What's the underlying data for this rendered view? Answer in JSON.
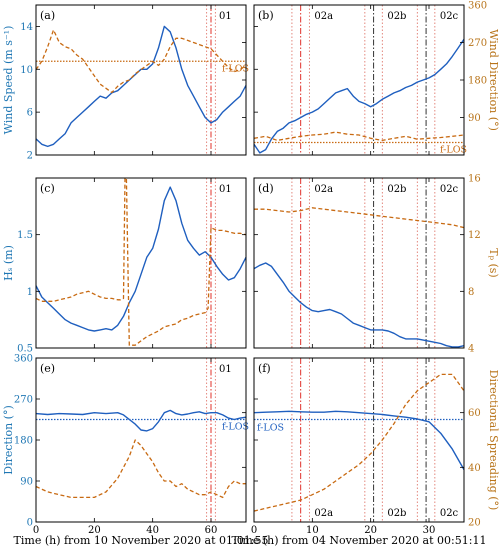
{
  "figure": {
    "left_x_axis_label": "Time (h) from 10 November 2020 at 01:01:55",
    "right_x_axis_label": "Time (h) from 04 November 2020 at 00:51:11",
    "left_x_ticks": [
      0,
      20,
      40,
      60
    ],
    "right_x_ticks": [
      0,
      10,
      20,
      30
    ]
  },
  "colors": {
    "blue": "#1f5fbf",
    "orange": "#c86a12",
    "axis_left": "#1f77b4",
    "axis_right": "#b8741a",
    "red": "#e0302a",
    "dark": "#333333"
  },
  "chart_data": [
    {
      "panel": "(a)",
      "type": "line",
      "ylabel": "Wind Speed (m s⁻¹)",
      "ylabel2": "Wind Direction (°)",
      "xlim": [
        0,
        72
      ],
      "ylim": [
        2,
        16
      ],
      "ylim2": [
        0,
        360
      ],
      "yticks": [
        2,
        6,
        10,
        14
      ],
      "yticks2": [
        90,
        180,
        270,
        360
      ],
      "grid": false,
      "events": [
        {
          "label": "01",
          "x": 60,
          "window": [
            58.5,
            61.5
          ]
        }
      ],
      "reference_line": {
        "label": "f-LOS",
        "axis": "right",
        "value": 225
      },
      "series": [
        {
          "axis": "left",
          "style": "solid",
          "x": [
            0,
            2,
            4,
            6,
            8,
            10,
            12,
            14,
            16,
            18,
            20,
            22,
            24,
            26,
            28,
            30,
            32,
            34,
            36,
            38,
            40,
            42,
            44,
            46,
            48,
            50,
            52,
            54,
            56,
            58,
            60,
            62,
            64,
            66,
            68,
            70,
            72
          ],
          "values": [
            3.5,
            3,
            2.8,
            3,
            3.5,
            4,
            5,
            5.5,
            6,
            6.5,
            7,
            7.5,
            7.3,
            7.8,
            8,
            8.5,
            9,
            9.5,
            10,
            10,
            10.5,
            12,
            14,
            13.5,
            12,
            10,
            8.5,
            7.5,
            6.5,
            5.5,
            5,
            5.3,
            6,
            6.5,
            7,
            7.5,
            8.5
          ]
        },
        {
          "axis": "right",
          "style": "dashed",
          "x": [
            0,
            2,
            4,
            6,
            8,
            10,
            12,
            14,
            16,
            18,
            20,
            22,
            24,
            26,
            28,
            30,
            32,
            34,
            36,
            38,
            40,
            42,
            44,
            46,
            48,
            50,
            52,
            54,
            56,
            58,
            60,
            62,
            64,
            66,
            68,
            70,
            72
          ],
          "values": [
            205,
            225,
            260,
            300,
            270,
            260,
            255,
            240,
            230,
            210,
            190,
            170,
            160,
            150,
            165,
            175,
            180,
            195,
            205,
            215,
            225,
            215,
            230,
            260,
            280,
            280,
            275,
            270,
            265,
            260,
            255,
            240,
            225,
            210,
            200,
            205,
            215
          ]
        }
      ]
    },
    {
      "panel": "(b)",
      "type": "line",
      "ylabel": "Wind Speed (m s⁻¹)",
      "ylabel2": "Wind Direction (°)",
      "xlim": [
        0,
        36
      ],
      "ylim": [
        2,
        16
      ],
      "ylim2": [
        0,
        360
      ],
      "yticks": [
        2,
        6,
        10,
        14
      ],
      "yticks2": [
        90,
        180,
        270,
        360
      ],
      "grid": false,
      "events": [
        {
          "label": "02a",
          "x": 8,
          "window": [
            6.5,
            9.5
          ]
        },
        {
          "label": "02b",
          "x": 20.5,
          "window": [
            19,
            22
          ]
        },
        {
          "label": "02c",
          "x": 29.5,
          "window": [
            28,
            31
          ]
        }
      ],
      "reference_line": {
        "label": "f-LOS",
        "axis": "right",
        "value": 30
      },
      "series": [
        {
          "axis": "left",
          "style": "solid",
          "x": [
            0,
            1,
            2,
            3,
            4,
            5,
            6,
            7,
            8,
            9,
            10,
            11,
            12,
            13,
            14,
            15,
            16,
            17,
            18,
            19,
            20,
            21,
            22,
            23,
            24,
            25,
            26,
            27,
            28,
            29,
            30,
            31,
            32,
            33,
            34,
            35,
            36
          ],
          "values": [
            3,
            2.2,
            2.5,
            3.5,
            4.2,
            4.5,
            5,
            5.2,
            5.5,
            5.8,
            6,
            6.3,
            6.8,
            7.3,
            7.8,
            8,
            8.2,
            7.5,
            7,
            6.8,
            6.5,
            6.8,
            7.2,
            7.5,
            7.8,
            8,
            8.3,
            8.5,
            8.8,
            9,
            9.2,
            9.5,
            10,
            10.5,
            11.2,
            12,
            12.8
          ]
        },
        {
          "axis": "right",
          "style": "dashed",
          "x": [
            0,
            2,
            4,
            6,
            8,
            10,
            12,
            14,
            16,
            18,
            20,
            22,
            24,
            26,
            28,
            30,
            32,
            34,
            36
          ],
          "values": [
            40,
            45,
            35,
            40,
            45,
            48,
            50,
            55,
            50,
            48,
            40,
            35,
            40,
            45,
            38,
            40,
            42,
            45,
            48
          ]
        }
      ]
    },
    {
      "panel": "(c)",
      "type": "line",
      "ylabel": "Hₛ (m)",
      "ylabel2": "Tₚ (s)",
      "xlim": [
        0,
        72
      ],
      "ylim": [
        0.5,
        2
      ],
      "ylim2": [
        4,
        16
      ],
      "yticks": [
        0.5,
        1,
        1.5
      ],
      "yticks2": [
        4,
        8,
        12,
        16
      ],
      "grid": false,
      "events": [
        {
          "label": "01",
          "x": 60,
          "window": [
            58.5,
            61.5
          ]
        }
      ],
      "series": [
        {
          "axis": "left",
          "style": "solid",
          "x": [
            0,
            2,
            4,
            6,
            8,
            10,
            12,
            14,
            16,
            18,
            20,
            22,
            24,
            26,
            28,
            30,
            32,
            34,
            36,
            38,
            40,
            42,
            44,
            46,
            48,
            50,
            52,
            54,
            56,
            58,
            60,
            62,
            64,
            66,
            68,
            70,
            72
          ],
          "values": [
            1.05,
            0.95,
            0.9,
            0.85,
            0.8,
            0.75,
            0.72,
            0.7,
            0.68,
            0.66,
            0.65,
            0.66,
            0.67,
            0.66,
            0.7,
            0.78,
            0.9,
            1.0,
            1.15,
            1.3,
            1.38,
            1.55,
            1.8,
            1.92,
            1.8,
            1.6,
            1.45,
            1.38,
            1.32,
            1.35,
            1.3,
            1.22,
            1.15,
            1.1,
            1.12,
            1.2,
            1.3
          ]
        },
        {
          "axis": "right",
          "style": "dashed",
          "x": [
            0,
            2,
            4,
            6,
            8,
            10,
            12,
            14,
            16,
            18,
            20,
            22,
            24,
            26,
            28,
            29,
            30,
            30.5,
            31,
            32,
            34,
            36,
            38,
            40,
            42,
            44,
            46,
            48,
            50,
            52,
            54,
            56,
            58,
            59,
            60,
            62,
            64,
            66,
            68,
            70,
            72
          ],
          "values": [
            7.5,
            7.3,
            7.3,
            7.3,
            7.4,
            7.5,
            7.6,
            7.8,
            7.9,
            8,
            7.8,
            7.6,
            7.5,
            7.5,
            7.4,
            7.4,
            7.5,
            16,
            16,
            4.2,
            4.2,
            4.5,
            4.8,
            5.0,
            5.2,
            5.5,
            5.6,
            5.7,
            6.0,
            6.1,
            6.3,
            6.4,
            6.5,
            6.8,
            12.5,
            12.3,
            12.3,
            12.2,
            12.1,
            12.1,
            12.0
          ]
        }
      ]
    },
    {
      "panel": "(d)",
      "type": "line",
      "ylabel": "Hₛ (m)",
      "ylabel2": "Tₚ (s)",
      "xlim": [
        0,
        36
      ],
      "ylim": [
        0.5,
        2
      ],
      "ylim2": [
        4,
        16
      ],
      "yticks": [
        0.5,
        1,
        1.5
      ],
      "yticks2": [
        4,
        8,
        12,
        16
      ],
      "grid": false,
      "events": [
        {
          "label": "02a",
          "x": 8,
          "window": [
            6.5,
            9.5
          ]
        },
        {
          "label": "02b",
          "x": 20.5,
          "window": [
            19,
            22
          ]
        },
        {
          "label": "02c",
          "x": 29.5,
          "window": [
            28,
            31
          ]
        }
      ],
      "series": [
        {
          "axis": "left",
          "style": "solid",
          "x": [
            0,
            1,
            2,
            3,
            4,
            5,
            6,
            7,
            8,
            9,
            10,
            11,
            12,
            13,
            14,
            15,
            16,
            17,
            18,
            19,
            20,
            21,
            22,
            23,
            24,
            25,
            26,
            27,
            28,
            29,
            30,
            31,
            32,
            33,
            34,
            35,
            36
          ],
          "values": [
            1.2,
            1.23,
            1.25,
            1.22,
            1.15,
            1.08,
            1.0,
            0.95,
            0.9,
            0.86,
            0.83,
            0.82,
            0.83,
            0.84,
            0.82,
            0.8,
            0.76,
            0.72,
            0.7,
            0.68,
            0.66,
            0.66,
            0.66,
            0.65,
            0.63,
            0.6,
            0.58,
            0.58,
            0.58,
            0.57,
            0.56,
            0.55,
            0.54,
            0.52,
            0.51,
            0.51,
            0.52
          ]
        },
        {
          "axis": "right",
          "style": "dashed",
          "x": [
            0,
            2,
            4,
            6,
            8,
            10,
            12,
            14,
            16,
            18,
            20,
            22,
            24,
            26,
            28,
            30,
            32,
            34,
            36
          ],
          "values": [
            13.8,
            13.8,
            13.7,
            13.6,
            13.7,
            13.9,
            13.8,
            13.7,
            13.6,
            13.5,
            13.4,
            13.3,
            13.2,
            13.1,
            13.0,
            12.9,
            12.8,
            12.7,
            12.5
          ]
        }
      ]
    },
    {
      "panel": "(e)",
      "type": "line",
      "ylabel": "Direction (°)",
      "ylabel2": "Directional Spreading (°)",
      "xlim": [
        0,
        72
      ],
      "ylim": [
        0,
        360
      ],
      "ylim2": [
        20,
        80
      ],
      "yticks": [
        0,
        90,
        180,
        270,
        360
      ],
      "yticks2": [
        20,
        40,
        60
      ],
      "grid": false,
      "events": [
        {
          "label": "01",
          "x": 60,
          "window": [
            58.5,
            61.5
          ]
        }
      ],
      "reference_line": {
        "label": "f-LOS",
        "axis": "left",
        "value": 225
      },
      "series": [
        {
          "axis": "left",
          "style": "solid",
          "x": [
            0,
            4,
            8,
            12,
            16,
            20,
            24,
            28,
            30,
            32,
            34,
            36,
            38,
            40,
            42,
            44,
            46,
            48,
            50,
            52,
            54,
            56,
            58,
            60,
            62,
            64,
            66,
            68,
            70,
            72
          ],
          "values": [
            238,
            236,
            238,
            237,
            236,
            240,
            238,
            240,
            235,
            225,
            215,
            202,
            200,
            205,
            220,
            240,
            245,
            238,
            235,
            237,
            240,
            242,
            238,
            240,
            240,
            235,
            228,
            225,
            228,
            230
          ]
        },
        {
          "axis": "right",
          "style": "dashed",
          "x": [
            0,
            4,
            8,
            12,
            16,
            20,
            24,
            28,
            30,
            32,
            34,
            36,
            38,
            40,
            42,
            44,
            46,
            48,
            50,
            52,
            54,
            56,
            58,
            60,
            62,
            64,
            66,
            68,
            70,
            72
          ],
          "values": [
            33,
            31,
            30,
            29,
            29,
            29,
            31,
            36,
            40,
            44,
            50,
            48,
            45,
            42,
            38,
            35,
            35,
            33,
            34,
            32,
            31,
            30,
            30,
            31,
            30,
            29,
            33,
            35,
            34,
            34
          ]
        }
      ]
    },
    {
      "panel": "(f)",
      "type": "line",
      "ylabel": "Direction (°)",
      "ylabel2": "Directional Spreading (°)",
      "xlim": [
        0,
        36
      ],
      "ylim": [
        0,
        360
      ],
      "ylim2": [
        20,
        80
      ],
      "yticks": [
        0,
        90,
        180,
        270,
        360
      ],
      "yticks2": [
        20,
        40,
        60
      ],
      "grid": false,
      "events": [
        {
          "label": "02a",
          "x": 8,
          "window": [
            6.5,
            9.5
          ]
        },
        {
          "label": "02b",
          "x": 20.5,
          "window": [
            19,
            22
          ]
        },
        {
          "label": "02c",
          "x": 29.5,
          "window": [
            28,
            31
          ]
        }
      ],
      "reference_line": {
        "label": "f-LOS",
        "axis": "left",
        "value": 225
      },
      "series": [
        {
          "axis": "left",
          "style": "solid",
          "x": [
            0,
            2,
            4,
            6,
            8,
            10,
            12,
            14,
            16,
            18,
            20,
            22,
            24,
            26,
            28,
            30,
            32,
            34,
            36
          ],
          "values": [
            240,
            241,
            242,
            243,
            242,
            241,
            241,
            243,
            242,
            240,
            238,
            236,
            233,
            230,
            226,
            220,
            195,
            160,
            115
          ]
        },
        {
          "axis": "right",
          "style": "dashed",
          "x": [
            0,
            2,
            4,
            6,
            8,
            10,
            12,
            14,
            16,
            18,
            20,
            22,
            24,
            26,
            28,
            30,
            32,
            34,
            36
          ],
          "values": [
            24,
            25,
            26,
            27,
            28,
            30,
            32,
            35,
            38,
            41,
            45,
            50,
            56,
            63,
            68,
            71,
            74,
            74,
            68
          ]
        }
      ]
    }
  ]
}
